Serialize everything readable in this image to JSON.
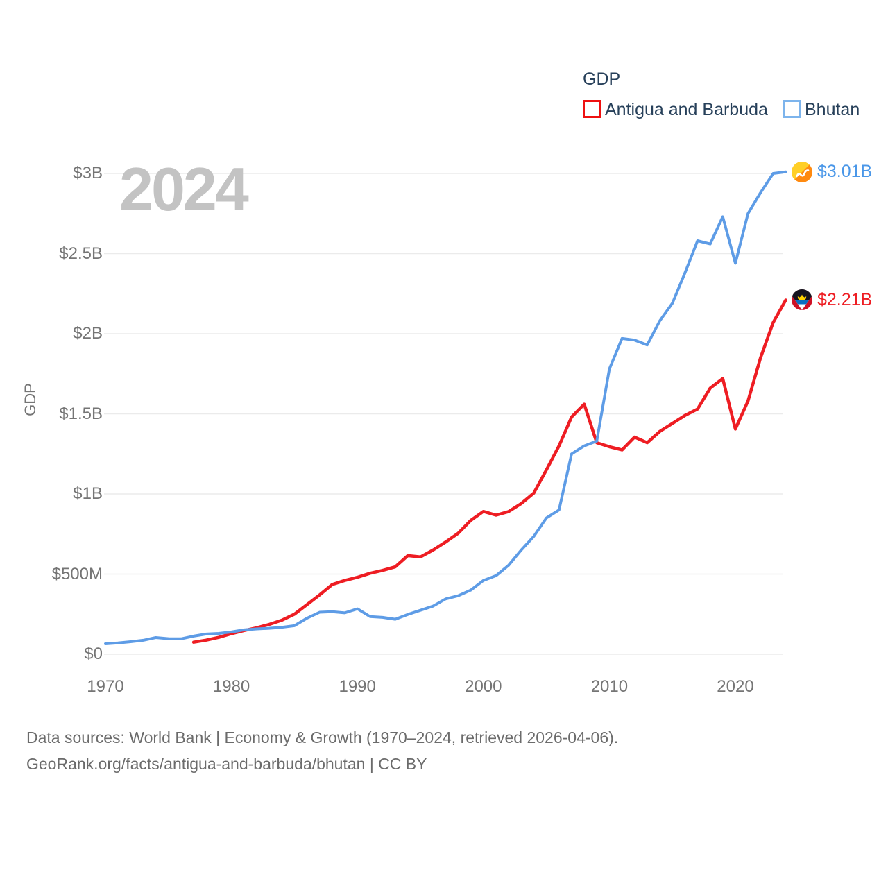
{
  "legend": {
    "title": "GDP",
    "items": [
      {
        "label": "Antigua and Barbuda",
        "color": "#ee1111"
      },
      {
        "label": "Bhutan",
        "color": "#7db4ec"
      }
    ]
  },
  "watermark": "2024",
  "y_axis_title": "GDP",
  "end_labels": {
    "bhutan": {
      "text": "$3.01B",
      "value_musd": 3010
    },
    "antigua": {
      "text": "$2.21B",
      "value_musd": 2210
    }
  },
  "footer": {
    "line1": "Data sources: World Bank | Economy & Growth (1970–2024, retrieved 2026-04-06).",
    "line2": "GeoRank.org/facts/antigua-and-barbuda/bhutan | CC BY"
  },
  "chart_data": {
    "type": "line",
    "title": "GDP",
    "ylabel": "GDP",
    "x_range": [
      1970,
      2024
    ],
    "ylim_musd": [
      0,
      3000
    ],
    "grid": "horizontal",
    "legend_position": "top-right",
    "y_ticks": [
      {
        "label": "$3B",
        "value": 3000
      },
      {
        "label": "$2.5B",
        "value": 2500
      },
      {
        "label": "$2B",
        "value": 2000
      },
      {
        "label": "$1.5B",
        "value": 1500
      },
      {
        "label": "$1B",
        "value": 1000
      },
      {
        "label": "$500M",
        "value": 500
      },
      {
        "label": "$0",
        "value": 0
      }
    ],
    "x_ticks": [
      {
        "label": "1970",
        "year": 1970
      },
      {
        "label": "1980",
        "year": 1980
      },
      {
        "label": "1990",
        "year": 1990
      },
      {
        "label": "2000",
        "year": 2000
      },
      {
        "label": "2010",
        "year": 2010
      },
      {
        "label": "2020",
        "year": 2020
      }
    ],
    "series": [
      {
        "name": "Antigua and Barbuda",
        "color": "#ee1d23",
        "start_year": 1977,
        "end_value_label": "$2.21B",
        "values_musd": [
          75,
          88,
          105,
          128,
          148,
          165,
          186,
          212,
          250,
          310,
          370,
          435,
          460,
          480,
          505,
          523,
          545,
          615,
          607,
          650,
          700,
          755,
          835,
          891,
          868,
          890,
          940,
          1005,
          1150,
          1300,
          1480,
          1560,
          1320,
          1295,
          1275,
          1355,
          1320,
          1390,
          1440,
          1490,
          1530,
          1660,
          1720,
          1405,
          1580,
          1850,
          2070,
          2210
        ]
      },
      {
        "name": "Bhutan",
        "color": "#5e9ce6",
        "start_year": 1970,
        "end_value_label": "$3.01B",
        "values_musd": [
          65,
          70,
          78,
          87,
          104,
          97,
          96,
          113,
          126,
          130,
          139,
          152,
          158,
          162,
          168,
          178,
          225,
          262,
          265,
          258,
          283,
          235,
          230,
          218,
          248,
          274,
          300,
          345,
          365,
          400,
          460,
          490,
          555,
          650,
          735,
          850,
          900,
          1250,
          1300,
          1330,
          1780,
          1970,
          1960,
          1930,
          2080,
          2190,
          2380,
          2580,
          2560,
          2730,
          2440,
          2750,
          2880,
          3000,
          3010
        ]
      }
    ]
  }
}
